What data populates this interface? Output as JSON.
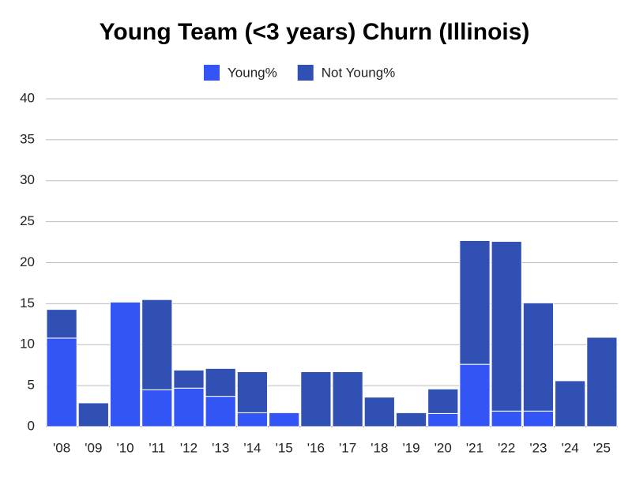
{
  "chart_data": {
    "type": "stacked_bar",
    "title": "Young Team (<3 years) Churn (Illinois)",
    "categories": [
      "'08",
      "'09",
      "'10",
      "'11",
      "'12",
      "'13",
      "'14",
      "'15",
      "'16",
      "'17",
      "'18",
      "'19",
      "'20",
      "'21",
      "'22",
      "'23",
      "'24",
      "'25"
    ],
    "series": [
      {
        "name": "Young%",
        "color": "#3355f5",
        "values": [
          10.8,
          0,
          15.2,
          4.5,
          4.7,
          3.7,
          1.7,
          1.7,
          0,
          0,
          0,
          0,
          1.6,
          7.6,
          1.9,
          1.9,
          0,
          0
        ]
      },
      {
        "name": "Not Young%",
        "color": "#3050b3",
        "values": [
          3.5,
          2.9,
          0,
          11.0,
          2.2,
          3.4,
          5.0,
          0,
          6.7,
          6.7,
          3.6,
          1.7,
          3.0,
          15.1,
          20.7,
          13.2,
          5.6,
          10.9
        ]
      }
    ],
    "ylim": [
      0,
      40
    ],
    "yticks": [
      0,
      5,
      10,
      15,
      20,
      25,
      30,
      35,
      40
    ],
    "grid": true,
    "legend": "top"
  }
}
